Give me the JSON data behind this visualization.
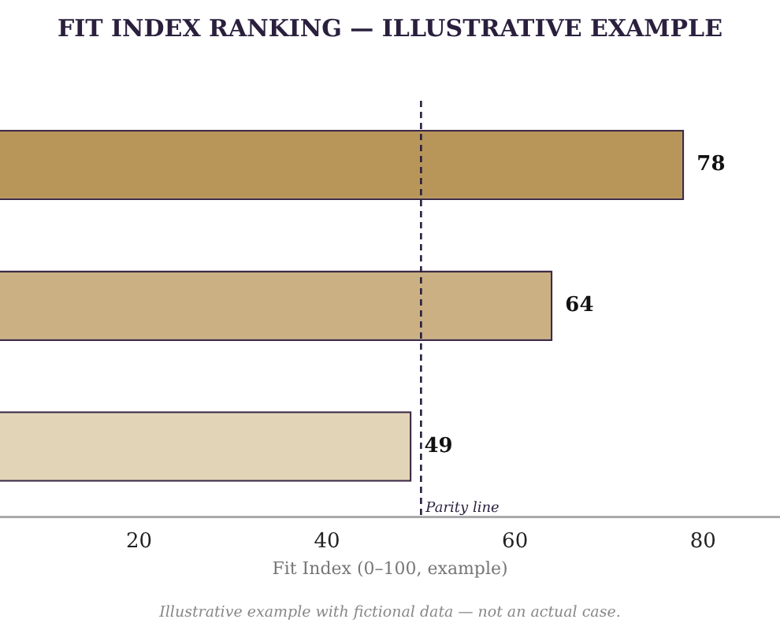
{
  "chart_data": {
    "type": "bar",
    "orientation": "horizontal",
    "title": "FIT INDEX RANKING — ILLUSTRATIVE EXAMPLE",
    "xlabel": "Fit Index (0–100, example)",
    "categories": [
      null,
      null,
      null
    ],
    "values": [
      78,
      64,
      49
    ],
    "colors": [
      "#b8965a",
      "#cbb084",
      "#e2d5b7"
    ],
    "xlim": [
      5.2,
      88.2
    ],
    "xticks": [
      20,
      40,
      60,
      80
    ],
    "ref_lines": [
      {
        "axis": "x",
        "value": 50,
        "label": "Parity line",
        "color": "#2a1f3d",
        "line_style": "dashed"
      }
    ],
    "data_labels": true,
    "grid": false,
    "legend": false,
    "annotations": [
      "Illustrative example with fictional data — not an actual case."
    ]
  }
}
